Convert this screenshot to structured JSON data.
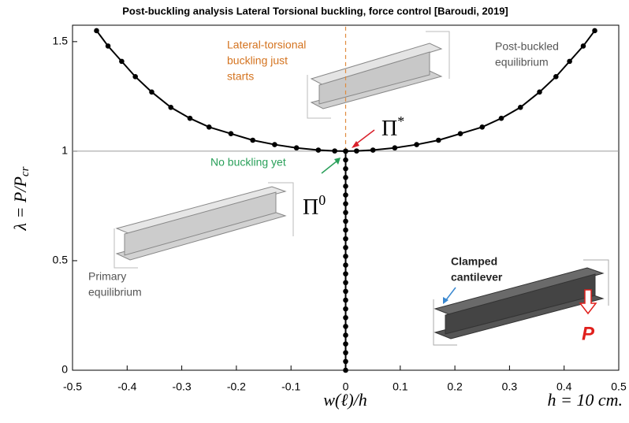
{
  "chart_data": {
    "type": "line",
    "title": "Post-buckling analysis Lateral Torsional buckling,  force control  [Baroudi, 2019]",
    "xlabel": "w(ℓ)/h",
    "ylabel": {
      "text": "λ = P/P",
      "subscript": "cr"
    },
    "note": "h = 10 cm.",
    "xlim": [
      -0.5,
      0.5
    ],
    "ylim": [
      0,
      1.575
    ],
    "xticks": [
      -0.5,
      -0.4,
      -0.3,
      -0.2,
      -0.1,
      0,
      0.1,
      0.2,
      0.3,
      0.4,
      0.5
    ],
    "yticks": [
      0,
      0.5,
      1,
      1.5
    ],
    "reference_lines": [
      {
        "axis": "y",
        "value": 1,
        "color": "#9a9a9a"
      },
      {
        "axis": "x",
        "value": 0,
        "from": 1,
        "color": "#e08a3c",
        "dashed": true
      }
    ],
    "series": [
      {
        "color": "#000000",
        "x": [
          -0.456,
          -0.435,
          -0.41,
          -0.385,
          -0.355,
          -0.32,
          -0.285,
          -0.25,
          -0.21,
          -0.17,
          -0.13,
          -0.09,
          -0.05,
          -0.02,
          0
        ],
        "values": [
          1.55,
          1.48,
          1.41,
          1.34,
          1.27,
          1.2,
          1.15,
          1.11,
          1.08,
          1.05,
          1.03,
          1.015,
          1.005,
          1.001,
          1
        ]
      },
      {
        "color": "#000000",
        "x": [
          0,
          0.02,
          0.05,
          0.09,
          0.13,
          0.17,
          0.21,
          0.25,
          0.285,
          0.32,
          0.355,
          0.385,
          0.41,
          0.435,
          0.456
        ],
        "values": [
          1,
          1.001,
          1.005,
          1.015,
          1.03,
          1.05,
          1.08,
          1.11,
          1.15,
          1.2,
          1.27,
          1.34,
          1.41,
          1.48,
          1.55
        ]
      },
      {
        "color": "#000000",
        "x": [
          0,
          0,
          0,
          0,
          0,
          0,
          0,
          0,
          0,
          0,
          0,
          0,
          0,
          0,
          0,
          0,
          0,
          0,
          0,
          0,
          0,
          0,
          0,
          0,
          0,
          0
        ],
        "values": [
          0,
          0.04,
          0.08,
          0.12,
          0.16,
          0.2,
          0.24,
          0.28,
          0.32,
          0.36,
          0.4,
          0.44,
          0.48,
          0.52,
          0.56,
          0.6,
          0.64,
          0.68,
          0.72,
          0.76,
          0.8,
          0.84,
          0.88,
          0.92,
          0.96,
          1
        ]
      }
    ],
    "annotations": [
      {
        "lines": [
          "Lateral-torsional",
          "buckling just",
          "starts"
        ],
        "color": "#d4731f"
      },
      {
        "lines": [
          "Post-buckled",
          "equilibrium"
        ],
        "color": "#555555"
      },
      {
        "lines": [
          "No buckling yet"
        ],
        "color": "#2aa05a"
      },
      {
        "lines": [
          "Primary",
          "equilibrium"
        ],
        "color": "#555555"
      },
      {
        "lines": [
          "Clamped",
          "cantilever"
        ],
        "color": "#222222"
      },
      {
        "lines": [
          "P"
        ],
        "color": "#e0201c"
      }
    ],
    "symbols": [
      {
        "text": "Π",
        "superscript": "*"
      },
      {
        "text": "Π",
        "superscript": "0"
      }
    ]
  }
}
